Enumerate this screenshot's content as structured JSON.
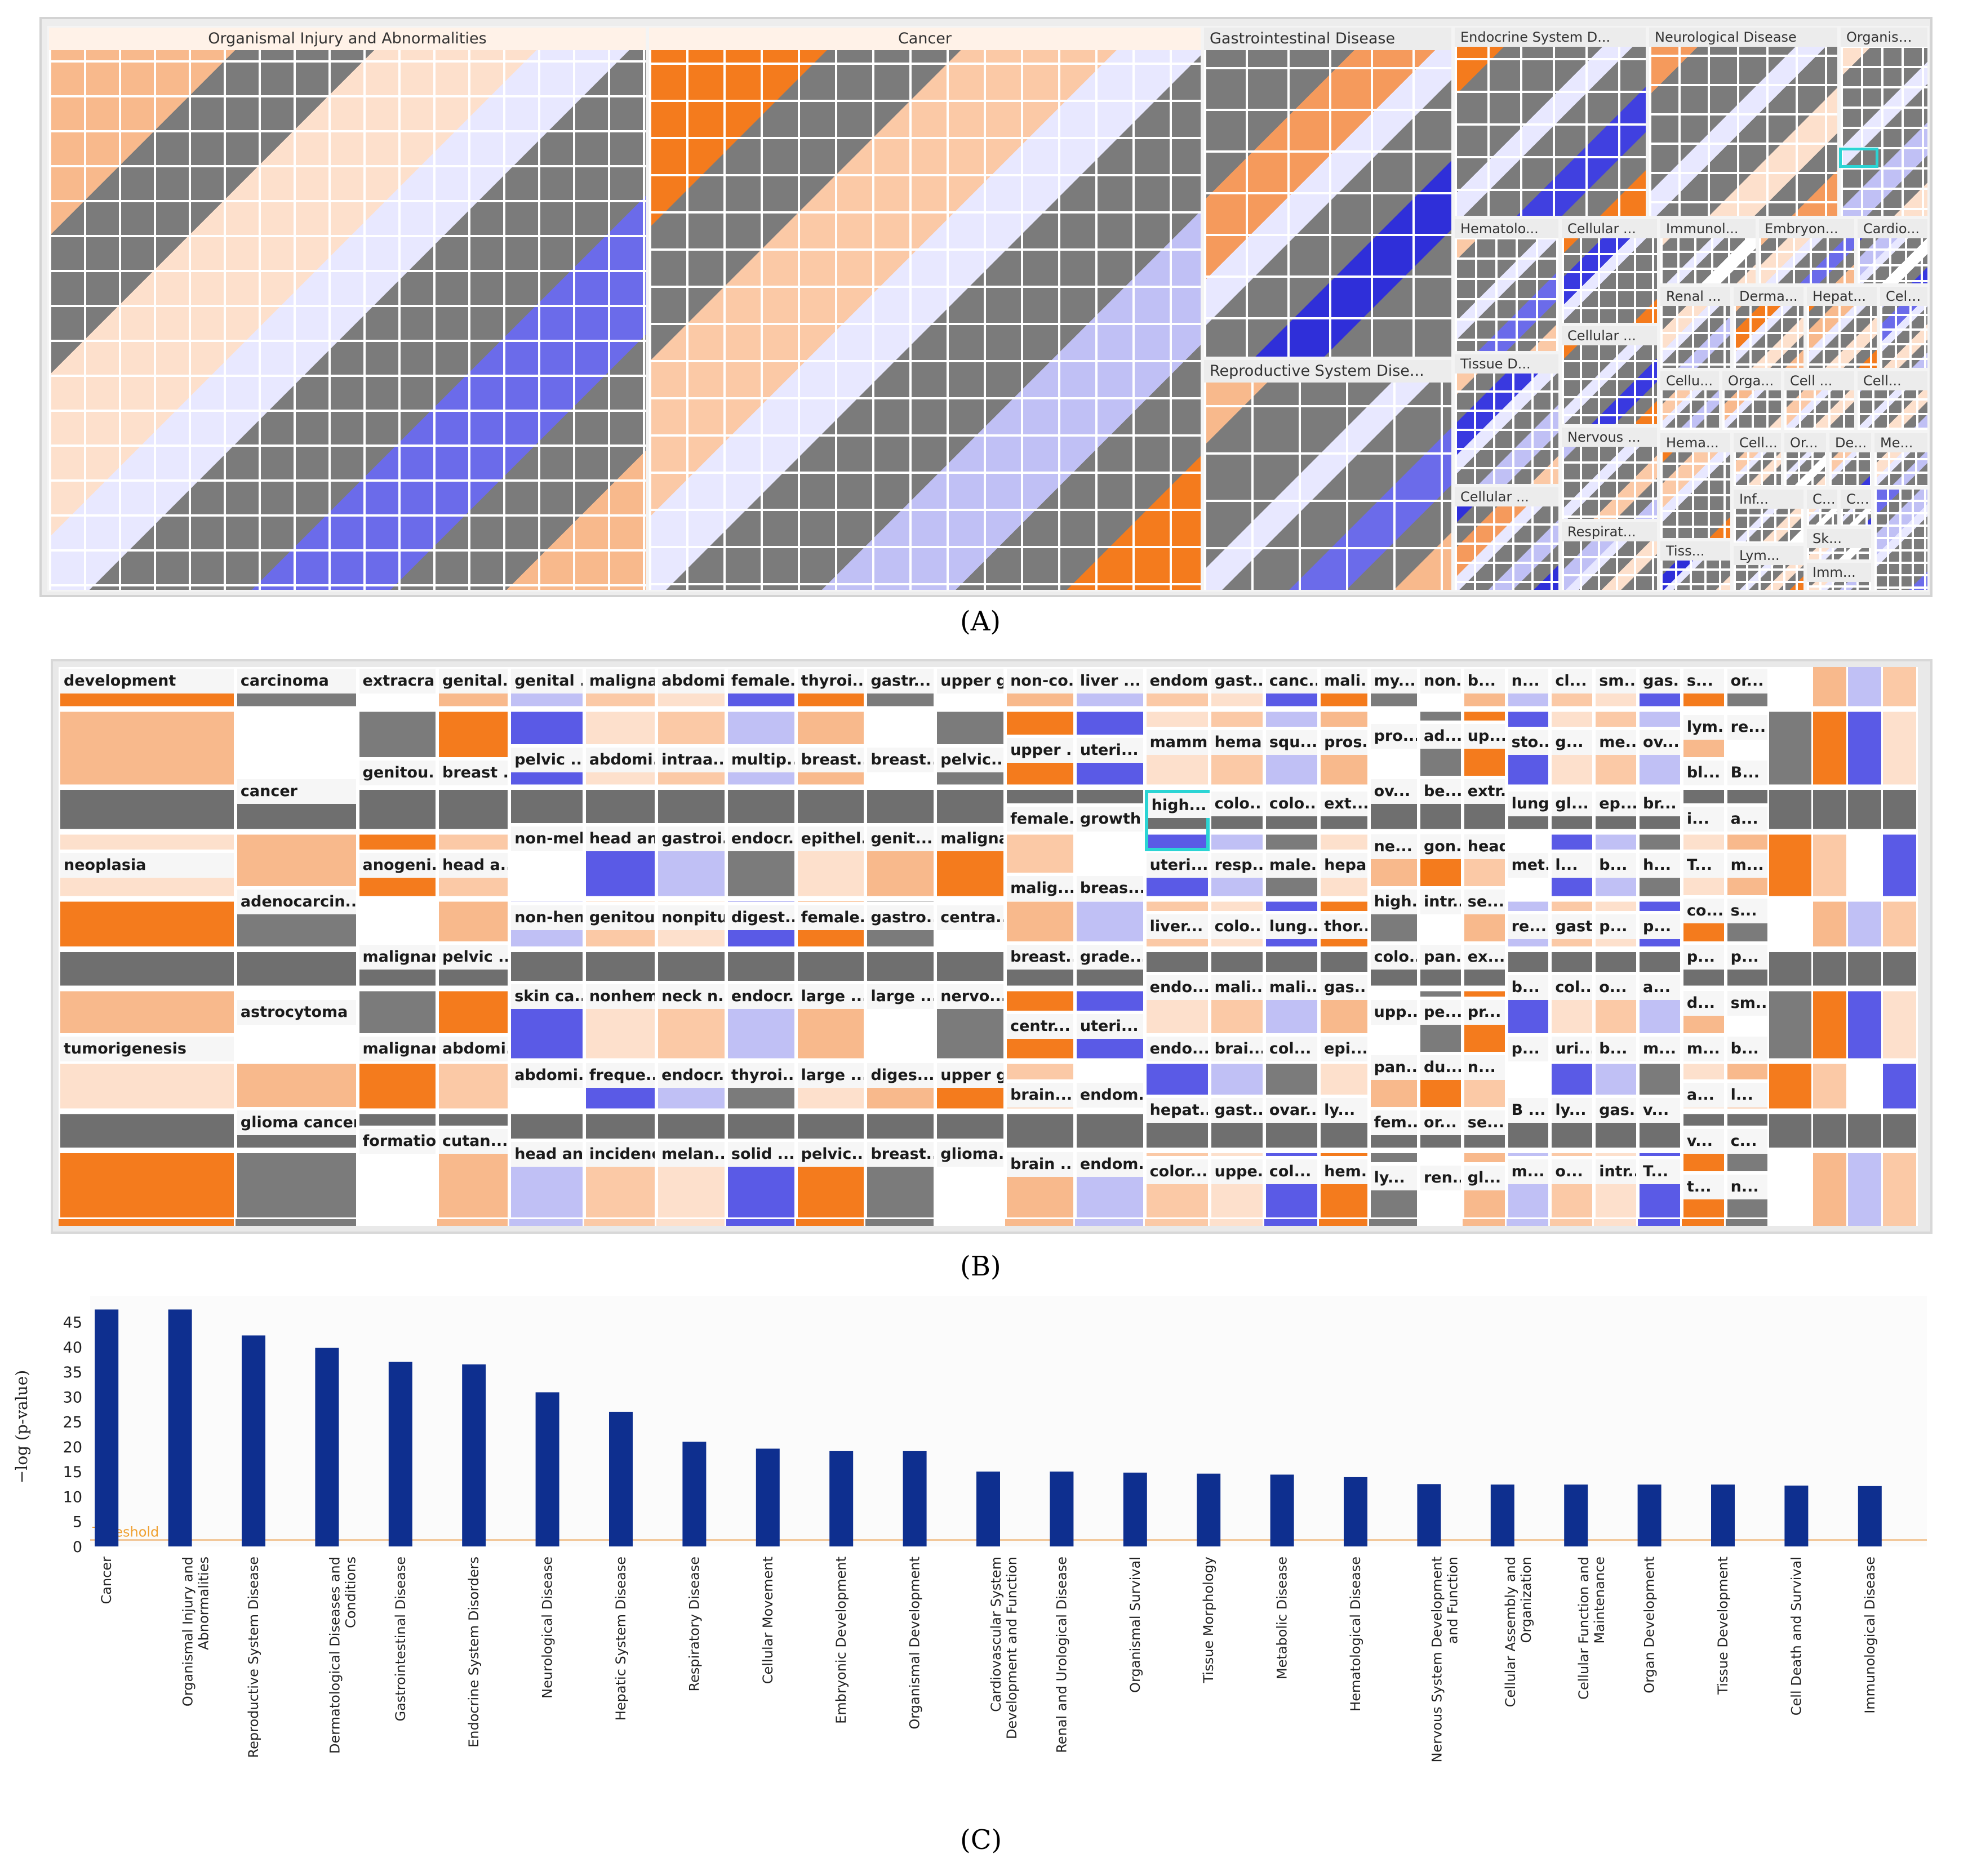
{
  "panel_labels": {
    "a": "(A)",
    "b": "(B)",
    "c": "(C)"
  },
  "panel_a": {
    "categories": [
      "Organismal Injury and Abnormalities",
      "Cancer",
      "Gastrointestinal Disease",
      "Endocrine System D...",
      "Neurological Disease",
      "Organism...",
      "Reproductive System Dise...",
      "Hematolo...",
      "Cellular ...",
      "Immunol...",
      "Embryon...",
      "Cardio...",
      "Renal ...",
      "Derma...",
      "Hepat...",
      "Cell ...",
      "Cellular ...",
      "Tissue D...",
      "Nervous ...",
      "Cellu...",
      "Orga...",
      "Cell ...",
      "Cell...",
      "Cellular ...",
      "Respirat...",
      "Cell...",
      "Or...",
      "De...",
      "Me...",
      "Hema...",
      "Inf...",
      "Ca...",
      "C...",
      "Tiss...",
      "Sk...",
      "Lym...",
      "Imm..."
    ]
  },
  "panel_b": {
    "labels": [
      "development",
      "neoplasia",
      "tumorigenesis",
      "carcinoma",
      "cancer",
      "adenocarcin...",
      "astrocytoma",
      "glioma cancer",
      "extracra...",
      "genitou...",
      "anogeni...",
      "malignan...",
      "malignan...",
      "formation",
      "genital...",
      "breast ...",
      "head a...",
      "pelvic ...",
      "abdomi...",
      "cutan...",
      "genital ...",
      "pelvic ...",
      "non-mel...",
      "non-hem...",
      "skin ca...",
      "abdomi...",
      "head an...",
      "maligna...",
      "abdomi...",
      "head an...",
      "genitou...",
      "nonhem...",
      "freque...",
      "incidence",
      "abdomi...",
      "intraa...",
      "gastroi...",
      "nonpitu...",
      "neck n...",
      "endocr...",
      "melan...",
      "female...",
      "multip...",
      "endocr...",
      "digest...",
      "endocr...",
      "thyroi...",
      "solid ...",
      "thyroi...",
      "breast...",
      "epithel...",
      "female...",
      "large ...",
      "large ...",
      "pelvic...",
      "gastr...",
      "breast...",
      "genit...",
      "gastro...",
      "large ...",
      "diges...",
      "breast...",
      "upper g...",
      "pelvic...",
      "maligna...",
      "centra...",
      "nervo...",
      "upper g...",
      "glioma...",
      "non-co...",
      "upper ...",
      "female...",
      "malig...",
      "breast...",
      "centr...",
      "brain...",
      "brain ...",
      "liver ...",
      "uteri...",
      "growth",
      "breas...",
      "grade...",
      "uteri...",
      "endom...",
      "endom...",
      "endom...",
      "mamm...",
      "high...",
      "uteri...",
      "liver...",
      "endo...",
      "endo...",
      "hepat...",
      "color...",
      "gast...",
      "hema...",
      "colo...",
      "resp...",
      "colo...",
      "mali...",
      "brai...",
      "gast...",
      "uppe...",
      "canc...",
      "squ...",
      "colo...",
      "male...",
      "lung...",
      "mali...",
      "col...",
      "ovar...",
      "col...",
      "mali...",
      "pros...",
      "ext...",
      "hepa...",
      "thor...",
      "gas...",
      "epi...",
      "ly...",
      "hem...",
      "my...",
      "pro...",
      "ov...",
      "ne...",
      "high...",
      "colo...",
      "upp...",
      "pan...",
      "fem...",
      "ly...",
      "non...",
      "ad...",
      "be...",
      "gon...",
      "intr...",
      "pan...",
      "pe...",
      "du...",
      "or...",
      "ren...",
      "b...",
      "up...",
      "extr...",
      "head...",
      "se...",
      "ex...",
      "pr...",
      "n...",
      "se...",
      "gl...",
      "n...",
      "sto...",
      "lung...",
      "met...",
      "re...",
      "b...",
      "p...",
      "B ...",
      "m...",
      "cl...",
      "g...",
      "gl...",
      "l...",
      "gast...",
      "col...",
      "uri...",
      "ly...",
      "o...",
      "sm...",
      "me...",
      "ep...",
      "b...",
      "p...",
      "o...",
      "b...",
      "gas...",
      "intr...",
      "gas...",
      "ov...",
      "br...",
      "h...",
      "p...",
      "a...",
      "m...",
      "v...",
      "T...",
      "s...",
      "lym...",
      "bl...",
      "i...",
      "T...",
      "co...",
      "p...",
      "d...",
      "m...",
      "a...",
      "v...",
      "t...",
      "or...",
      "re...",
      "B...",
      "a...",
      "m...",
      "s...",
      "p...",
      "sm...",
      "b...",
      "l...",
      "c...",
      "n..."
    ]
  },
  "chart_data": {
    "type": "bar",
    "title": "",
    "xlabel": "",
    "ylabel": "−log (p-value)",
    "ylim": [
      0,
      48
    ],
    "yticks": [
      0,
      5,
      10,
      15,
      20,
      25,
      30,
      35,
      40,
      45
    ],
    "threshold": {
      "label": "Threshold",
      "value": 1.3
    },
    "categories": [
      "Cancer",
      "Organismal Injury and Abnormalities",
      "Reproductive System Disease",
      "Dermatological Diseases and Conditions",
      "Gastrointestinal Disease",
      "Endocrine System Disorders",
      "Neurological Disease",
      "Hepatic System Disease",
      "Respiratory Disease",
      "Cellular Movement",
      "Embryonic Development",
      "Organismal Development",
      "Cardiovascular System Development and Function",
      "Renal and Urological Disease",
      "Organismal Survival",
      "Tissue Morphology",
      "Metabolic Disease",
      "Hematological Disease",
      "Nervous System Development and Function",
      "Cellular Assembly and Organization",
      "Cellular Function and Maintenance",
      "Organ Development",
      "Tissue Development",
      "Cell Death and Survival",
      "Immunological Disease"
    ],
    "values": [
      47.5,
      47.5,
      42.3,
      39.8,
      37.0,
      36.5,
      30.9,
      27.0,
      21.0,
      19.6,
      19.1,
      19.1,
      15.0,
      15.0,
      14.8,
      14.6,
      14.4,
      13.9,
      12.5,
      12.4,
      12.4,
      12.4,
      12.4,
      12.2,
      12.1
    ],
    "colors": {
      "bar": "#0e2f8f",
      "threshold": "#f2c89b",
      "threshold_text": "#f0a030"
    }
  }
}
